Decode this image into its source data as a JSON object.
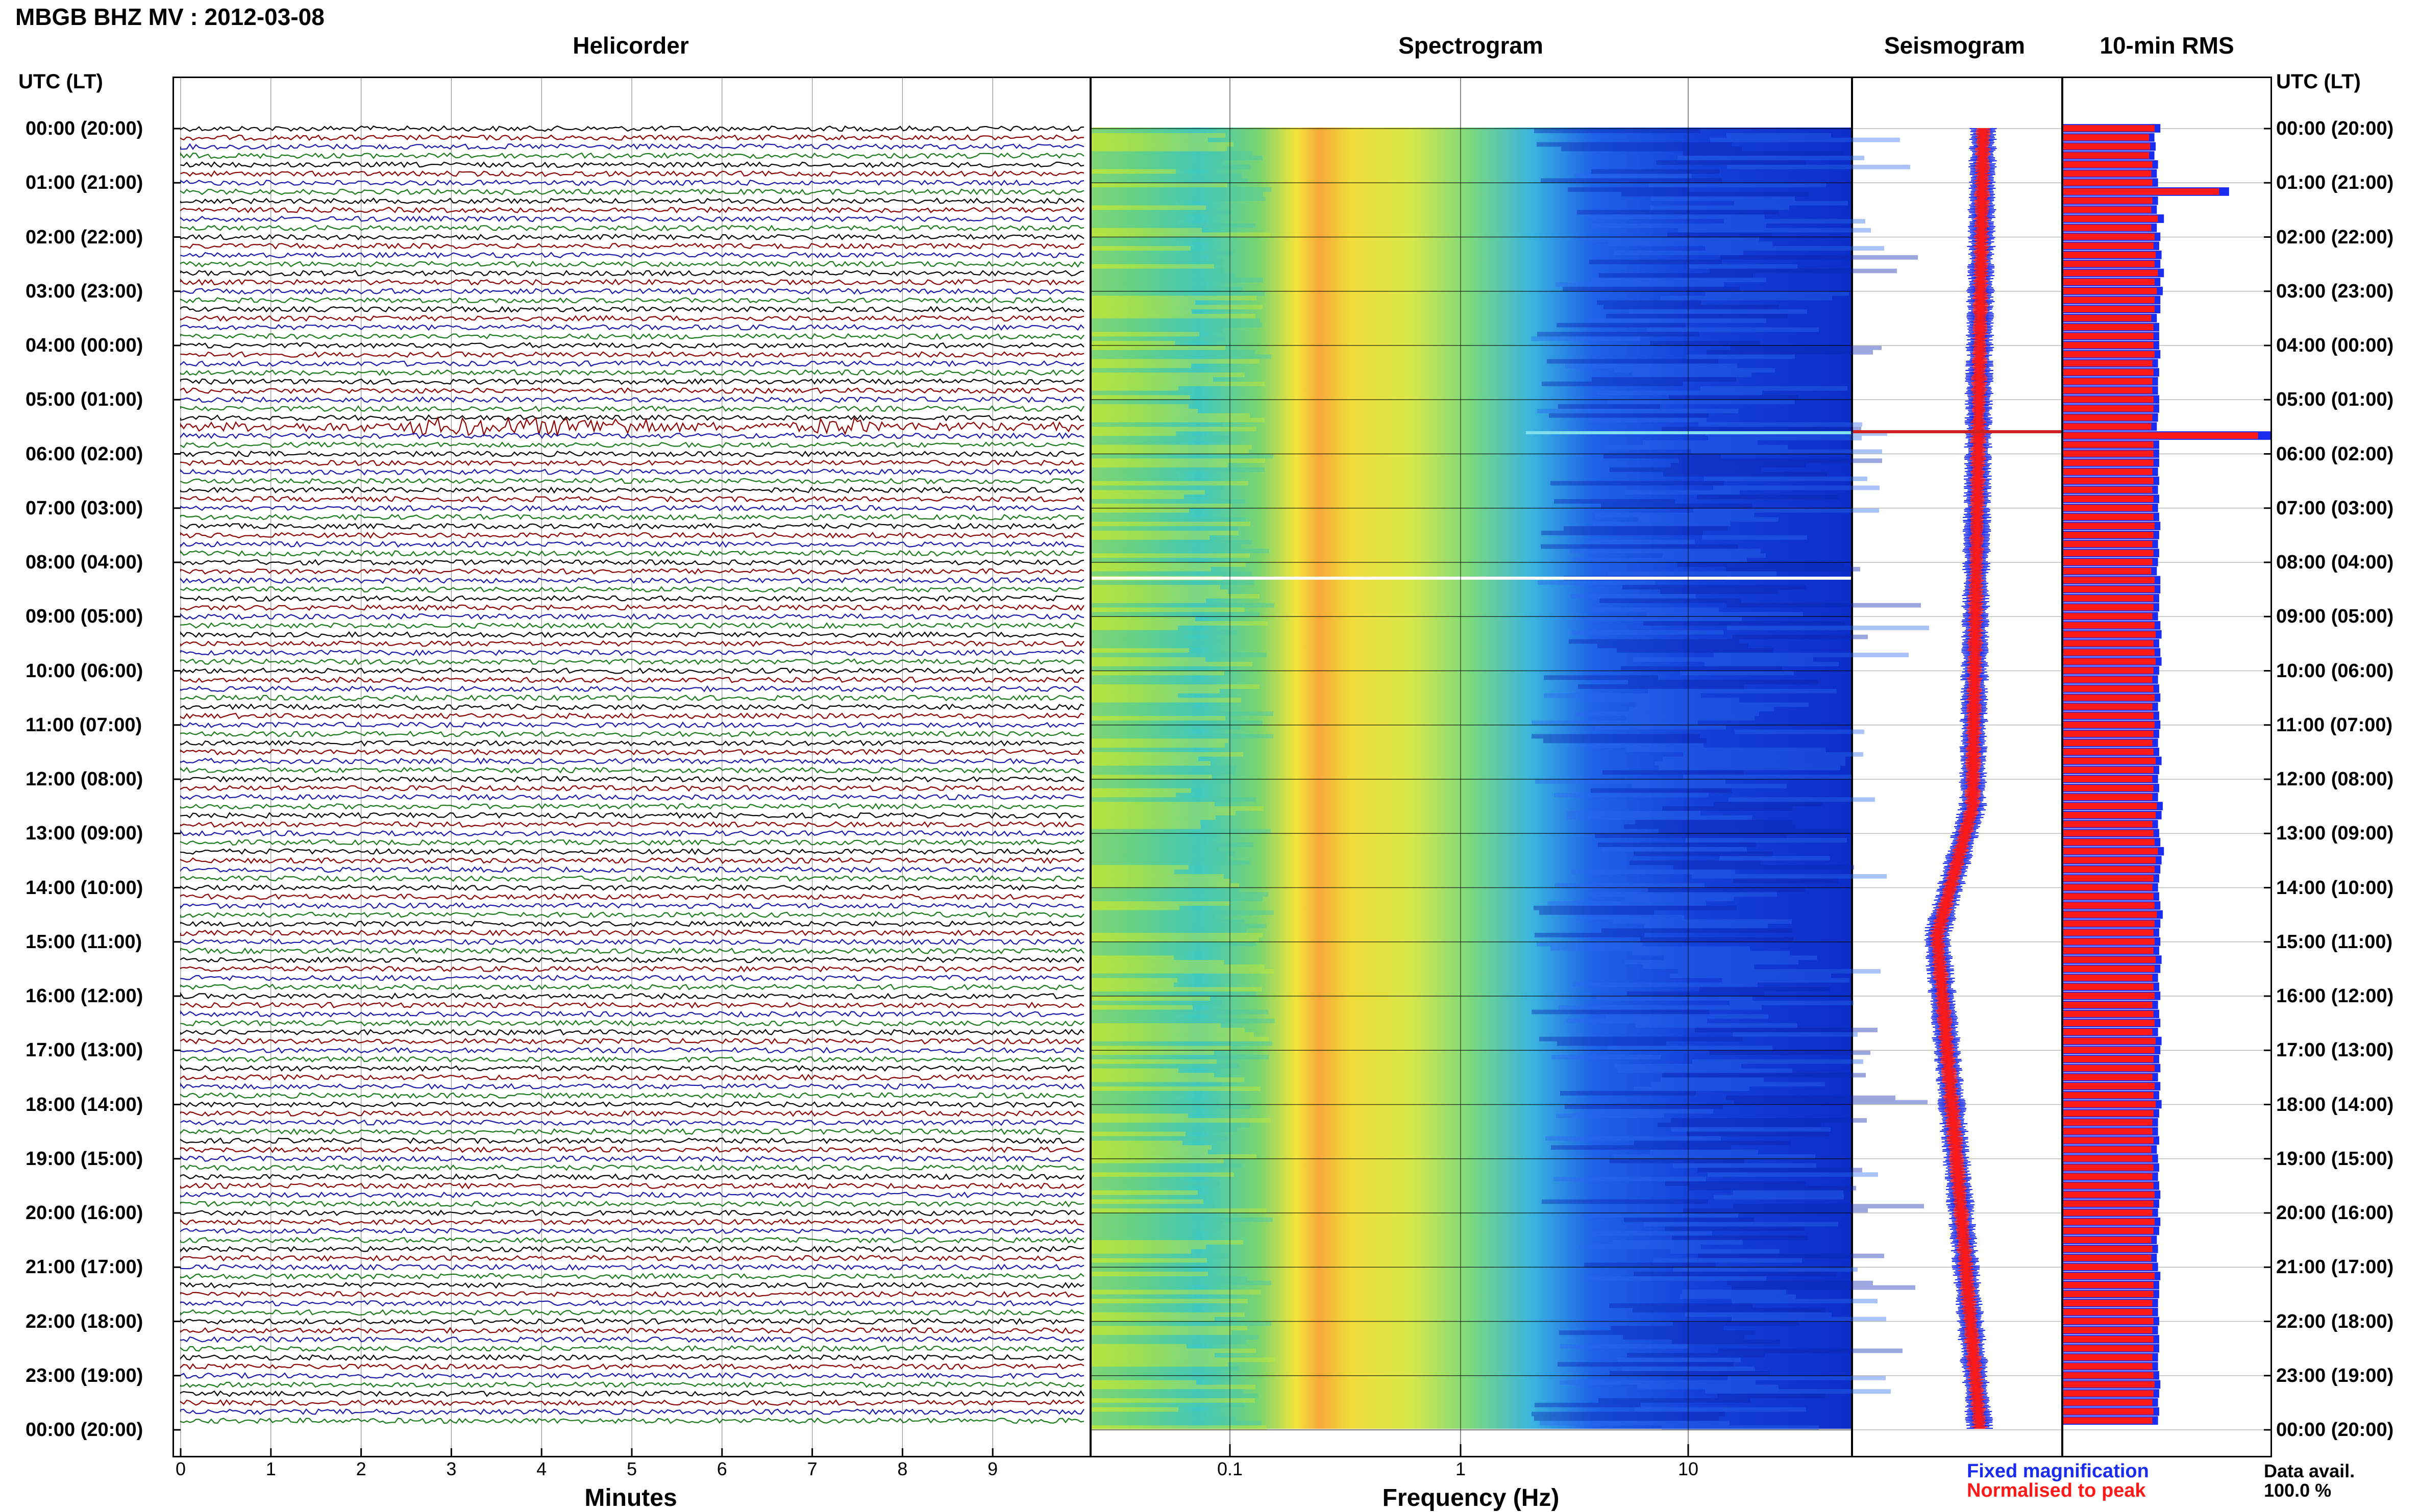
{
  "title": "MBGB BHZ MV : 2012-03-08",
  "panels": {
    "helicorder": "Helicorder",
    "spectrogram": "Spectrogram",
    "seismogram": "Seismogram",
    "rms": "10-min RMS"
  },
  "utc_header": "UTC (LT)",
  "hour_labels": [
    "00:00 (20:00)",
    "01:00 (21:00)",
    "02:00 (22:00)",
    "03:00 (23:00)",
    "04:00 (00:00)",
    "05:00 (01:00)",
    "06:00 (02:00)",
    "07:00 (03:00)",
    "08:00 (04:00)",
    "09:00 (05:00)",
    "10:00 (06:00)",
    "11:00 (07:00)",
    "12:00 (08:00)",
    "13:00 (09:00)",
    "14:00 (10:00)",
    "15:00 (11:00)",
    "16:00 (12:00)",
    "17:00 (13:00)",
    "18:00 (14:00)",
    "19:00 (15:00)",
    "20:00 (16:00)",
    "21:00 (17:00)",
    "22:00 (18:00)",
    "23:00 (19:00)",
    "00:00 (20:00)"
  ],
  "helicorder_axis": {
    "xlabel": "Minutes",
    "ticks": [
      "0",
      "1",
      "2",
      "3",
      "4",
      "5",
      "6",
      "7",
      "8",
      "9"
    ]
  },
  "spectrogram_axis": {
    "xlabel": "Frequency (Hz)",
    "ticks": [
      "0.1",
      "1",
      "10"
    ]
  },
  "legend": {
    "fixed": "Fixed magnification",
    "normalised": "Normalised to peak",
    "fixed_color": "#1a2cf0",
    "normalised_color": "#ff1a1a"
  },
  "data_avail": {
    "label": "Data avail.",
    "value": "100.0 %"
  },
  "trace_colors": [
    "#000000",
    "#8b0000",
    "#1a1aaa",
    "#1a7a1a"
  ],
  "chart_data": {
    "type": "heatmap",
    "rms_10min": [
      0.82,
      0.77,
      0.78,
      0.77,
      0.8,
      0.79,
      0.8,
      1.4,
      0.8,
      0.79,
      0.85,
      0.79,
      0.82,
      0.81,
      0.83,
      0.82,
      0.85,
      0.82,
      0.84,
      0.82,
      0.82,
      0.79,
      0.81,
      0.81,
      0.81,
      0.82,
      0.8,
      0.81,
      0.8,
      0.8,
      0.81,
      0.81,
      0.8,
      0.79,
      1.75,
      0.81,
      0.81,
      0.81,
      0.8,
      0.81,
      0.8,
      0.81,
      0.8,
      0.81,
      0.82,
      0.81,
      0.8,
      0.81,
      0.8,
      0.79,
      0.82,
      0.82,
      0.81,
      0.81,
      0.8,
      0.82,
      0.83,
      0.81,
      0.82,
      0.83,
      0.81,
      0.8,
      0.81,
      0.82,
      0.8,
      0.81,
      0.82,
      0.81,
      0.8,
      0.81,
      0.83,
      0.81,
      0.8,
      0.81,
      0.8,
      0.84,
      0.83,
      0.8,
      0.81,
      0.82,
      0.85,
      0.83,
      0.82,
      0.81,
      0.8,
      0.81,
      0.82,
      0.84,
      0.82,
      0.81,
      0.82,
      0.81,
      0.83,
      0.82,
      0.8,
      0.81,
      0.82,
      0.8,
      0.81,
      0.82,
      0.8,
      0.83,
      0.82,
      0.81,
      0.82,
      0.8,
      0.82,
      0.81,
      0.83,
      0.81,
      0.8,
      0.8,
      0.81,
      0.79,
      0.8,
      0.81,
      0.8,
      0.81,
      0.82,
      0.81,
      0.8,
      0.82,
      0.81,
      0.79,
      0.8,
      0.79,
      0.8,
      0.82,
      0.81,
      0.81,
      0.8,
      0.8,
      0.81,
      0.8,
      0.81,
      0.81,
      0.8,
      0.8,
      0.81,
      0.82,
      0.81,
      0.8,
      0.81,
      0.8
    ]
  }
}
